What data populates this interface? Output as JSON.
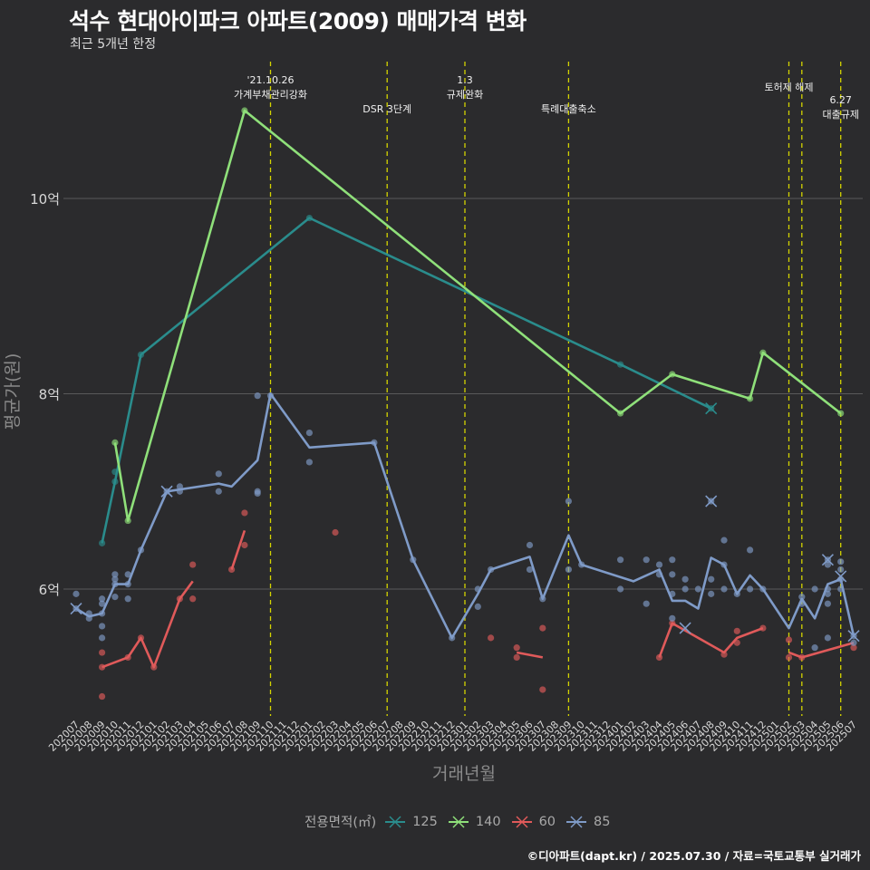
{
  "title": "석수 현대아이파크 아파트(2009) 매매가격 변화",
  "subtitle": "최근 5개년 한정",
  "caption": "©디아파트(dapt.kr) / 2025.07.30 / 자료=국토교통부 실거래가",
  "legend_title": "전용면적(㎡)",
  "colors": {
    "125": "#2a8c8c",
    "140": "#8fe07a",
    "60": "#e05a5a",
    "85": "#7f9bc8",
    "vline": "#d4d400",
    "grid": "#5a5a5a",
    "background": "#2b2b2d"
  },
  "chart_data": {
    "type": "line",
    "xlabel": "거래년월",
    "ylabel": "평균가(원)",
    "ylim": [
      4.7,
      11.8
    ],
    "yticks": [
      {
        "value": 6,
        "label": "6억"
      },
      {
        "value": 8,
        "label": "8억"
      },
      {
        "value": 10,
        "label": "10억"
      }
    ],
    "x_start": "2020-07",
    "x_end": "2025-07",
    "x_labels": [
      "202007",
      "202008",
      "202009",
      "202010",
      "202011",
      "202012",
      "202101",
      "202102",
      "202103",
      "202104",
      "202105",
      "202106",
      "202107",
      "202108",
      "202109",
      "202110",
      "202111",
      "202112",
      "202201",
      "202202",
      "202203",
      "202204",
      "202205",
      "202206",
      "202207",
      "202208",
      "202209",
      "202210",
      "202211",
      "202212",
      "202301",
      "202302",
      "202303",
      "202304",
      "202305",
      "202306",
      "202307",
      "202308",
      "202309",
      "202310",
      "202311",
      "202312",
      "202401",
      "202402",
      "202403",
      "202404",
      "202405",
      "202406",
      "202407",
      "202408",
      "202409",
      "202410",
      "202411",
      "202412",
      "202501",
      "202502",
      "202503",
      "202504",
      "202505",
      "202506",
      "202507"
    ],
    "events": [
      {
        "date": "2021-10",
        "label": "'21.10.26\n가계부채관리강화",
        "row": 0
      },
      {
        "date": "2022-07",
        "label": "DSR 3단계",
        "row": 2
      },
      {
        "date": "2023-01",
        "label": "1.3\n규제완화",
        "row": 0
      },
      {
        "date": "2023-09",
        "label": "특례대출축소",
        "row": 2
      },
      {
        "date": "2025-02",
        "label": "토허제 해제",
        "row": 1
      },
      {
        "date": "2025-03",
        "label": "",
        "row": 1
      },
      {
        "date": "2025-06",
        "label": "6.27\n대출규제",
        "row": 3
      }
    ],
    "series": [
      {
        "name": "125",
        "line": [
          [
            "2020-09",
            6.47
          ],
          [
            "2020-10",
            7.1
          ],
          [
            "2020-12",
            8.4
          ],
          [
            "2022-01",
            9.8
          ],
          [
            "2024-01",
            8.3
          ],
          [
            "2024-08",
            7.85
          ]
        ],
        "points": [
          [
            "2020-09",
            6.47
          ],
          [
            "2020-10",
            7.1
          ],
          [
            "2020-10",
            7.2
          ],
          [
            "2020-12",
            8.4
          ],
          [
            "2022-01",
            9.8
          ],
          [
            "2024-01",
            8.3
          ],
          [
            "2024-08",
            7.85
          ]
        ],
        "crosses": [
          [
            "2024-08",
            7.85
          ]
        ]
      },
      {
        "name": "140",
        "line": [
          [
            "2020-10",
            7.5
          ],
          [
            "2020-11",
            6.7
          ],
          [
            "2021-08",
            10.9
          ],
          [
            "2024-01",
            7.8
          ],
          [
            "2024-05",
            8.2
          ],
          [
            "2024-11",
            7.95
          ],
          [
            "2024-12",
            8.42
          ],
          [
            "2025-06",
            7.8
          ]
        ],
        "points": [
          [
            "2020-10",
            7.5
          ],
          [
            "2020-11",
            6.7
          ],
          [
            "2021-08",
            10.9
          ],
          [
            "2024-01",
            7.8
          ],
          [
            "2024-05",
            8.2
          ],
          [
            "2024-11",
            7.95
          ],
          [
            "2024-12",
            8.42
          ],
          [
            "2025-06",
            7.8
          ]
        ],
        "crosses": []
      },
      {
        "name": "60",
        "segments": [
          [
            [
              "2020-09",
              5.2
            ],
            [
              "2020-11",
              5.3
            ],
            [
              "2020-12",
              5.5
            ],
            [
              "2021-01",
              5.2
            ],
            [
              "2021-03",
              5.9
            ],
            [
              "2021-04",
              6.08
            ]
          ],
          [
            [
              "2021-07",
              6.2
            ],
            [
              "2021-08",
              6.6
            ]
          ],
          [
            [
              "2023-05",
              5.35
            ],
            [
              "2023-07",
              5.3
            ]
          ],
          [
            [
              "2024-04",
              5.3
            ],
            [
              "2024-05",
              5.65
            ],
            [
              "2024-09",
              5.35
            ],
            [
              "2024-10",
              5.5
            ],
            [
              "2024-12",
              5.6
            ]
          ],
          [
            [
              "2025-02",
              5.35
            ],
            [
              "2025-03",
              5.3
            ],
            [
              "2025-07",
              5.45
            ]
          ]
        ],
        "points": [
          [
            "2020-09",
            4.9
          ],
          [
            "2020-09",
            5.2
          ],
          [
            "2020-09",
            5.35
          ],
          [
            "2020-11",
            5.3
          ],
          [
            "2020-12",
            5.5
          ],
          [
            "2021-01",
            5.2
          ],
          [
            "2021-03",
            5.9
          ],
          [
            "2021-04",
            5.9
          ],
          [
            "2021-04",
            6.25
          ],
          [
            "2021-07",
            6.2
          ],
          [
            "2021-08",
            6.45
          ],
          [
            "2021-08",
            6.78
          ],
          [
            "2022-03",
            6.58
          ],
          [
            "2023-03",
            5.5
          ],
          [
            "2023-05",
            5.3
          ],
          [
            "2023-05",
            5.4
          ],
          [
            "2023-07",
            5.6
          ],
          [
            "2023-07",
            4.97
          ],
          [
            "2024-04",
            5.3
          ],
          [
            "2024-05",
            5.65
          ],
          [
            "2024-09",
            5.33
          ],
          [
            "2024-10",
            5.45
          ],
          [
            "2024-10",
            5.57
          ],
          [
            "2024-12",
            5.6
          ],
          [
            "2025-02",
            5.3
          ],
          [
            "2025-02",
            5.48
          ],
          [
            "2025-03",
            5.3
          ],
          [
            "2025-07",
            5.4
          ]
        ],
        "crosses": []
      },
      {
        "name": "85",
        "line": [
          [
            "2020-07",
            5.8
          ],
          [
            "2020-08",
            5.72
          ],
          [
            "2020-09",
            5.75
          ],
          [
            "2020-10",
            6.05
          ],
          [
            "2020-11",
            6.05
          ],
          [
            "2020-12",
            6.4
          ],
          [
            "2021-02",
            7.0
          ],
          [
            "2021-06",
            7.08
          ],
          [
            "2021-07",
            7.05
          ],
          [
            "2021-09",
            7.32
          ],
          [
            "2021-10",
            8.0
          ],
          [
            "2022-01",
            7.45
          ],
          [
            "2022-06",
            7.5
          ],
          [
            "2022-09",
            6.3
          ],
          [
            "2022-12",
            5.5
          ],
          [
            "2023-02",
            5.95
          ],
          [
            "2023-03",
            6.2
          ],
          [
            "2023-06",
            6.33
          ],
          [
            "2023-07",
            5.9
          ],
          [
            "2023-09",
            6.55
          ],
          [
            "2023-10",
            6.25
          ],
          [
            "2024-02",
            6.08
          ],
          [
            "2024-04",
            6.2
          ],
          [
            "2024-05",
            5.88
          ],
          [
            "2024-06",
            5.88
          ],
          [
            "2024-07",
            5.8
          ],
          [
            "2024-08",
            6.32
          ],
          [
            "2024-09",
            6.25
          ],
          [
            "2024-10",
            5.95
          ],
          [
            "2024-11",
            6.14
          ],
          [
            "2024-12",
            6.0
          ],
          [
            "2025-02",
            5.6
          ],
          [
            "2025-03",
            5.9
          ],
          [
            "2025-04",
            5.7
          ],
          [
            "2025-05",
            6.05
          ],
          [
            "2025-06",
            6.1
          ],
          [
            "2025-07",
            5.52
          ]
        ],
        "points": [
          [
            "2020-07",
            5.95
          ],
          [
            "2020-07",
            5.8
          ],
          [
            "2020-08",
            5.7
          ],
          [
            "2020-08",
            5.75
          ],
          [
            "2020-09",
            5.5
          ],
          [
            "2020-09",
            5.62
          ],
          [
            "2020-09",
            5.75
          ],
          [
            "2020-09",
            5.85
          ],
          [
            "2020-09",
            5.9
          ],
          [
            "2020-10",
            5.92
          ],
          [
            "2020-10",
            6.05
          ],
          [
            "2020-10",
            6.1
          ],
          [
            "2020-10",
            6.15
          ],
          [
            "2020-11",
            5.9
          ],
          [
            "2020-11",
            6.05
          ],
          [
            "2020-11",
            6.15
          ],
          [
            "2020-12",
            6.4
          ],
          [
            "2021-02",
            7.0
          ],
          [
            "2021-03",
            7.0
          ],
          [
            "2021-03",
            7.05
          ],
          [
            "2021-06",
            7.0
          ],
          [
            "2021-06",
            7.18
          ],
          [
            "2021-09",
            6.98
          ],
          [
            "2021-09",
            7.0
          ],
          [
            "2021-09",
            7.98
          ],
          [
            "2021-10",
            7.98
          ],
          [
            "2022-01",
            7.3
          ],
          [
            "2022-01",
            7.6
          ],
          [
            "2022-06",
            7.5
          ],
          [
            "2022-09",
            6.3
          ],
          [
            "2022-12",
            5.5
          ],
          [
            "2023-02",
            5.82
          ],
          [
            "2023-02",
            6.0
          ],
          [
            "2023-03",
            6.2
          ],
          [
            "2023-06",
            6.2
          ],
          [
            "2023-06",
            6.45
          ],
          [
            "2023-07",
            5.9
          ],
          [
            "2023-09",
            6.2
          ],
          [
            "2023-09",
            6.9
          ],
          [
            "2023-10",
            6.25
          ],
          [
            "2024-01",
            6.0
          ],
          [
            "2024-01",
            6.3
          ],
          [
            "2024-03",
            5.85
          ],
          [
            "2024-03",
            6.3
          ],
          [
            "2024-04",
            6.15
          ],
          [
            "2024-04",
            6.25
          ],
          [
            "2024-05",
            5.7
          ],
          [
            "2024-05",
            5.95
          ],
          [
            "2024-05",
            6.15
          ],
          [
            "2024-05",
            6.3
          ],
          [
            "2024-06",
            6.0
          ],
          [
            "2024-06",
            6.1
          ],
          [
            "2024-07",
            6.0
          ],
          [
            "2024-08",
            5.95
          ],
          [
            "2024-08",
            6.1
          ],
          [
            "2024-08",
            6.9
          ],
          [
            "2024-09",
            6.0
          ],
          [
            "2024-09",
            6.25
          ],
          [
            "2024-09",
            6.5
          ],
          [
            "2024-10",
            5.95
          ],
          [
            "2024-11",
            6.0
          ],
          [
            "2024-11",
            6.4
          ],
          [
            "2024-12",
            6.0
          ],
          [
            "2025-03",
            5.85
          ],
          [
            "2025-03",
            5.92
          ],
          [
            "2025-04",
            5.4
          ],
          [
            "2025-04",
            6.0
          ],
          [
            "2025-05",
            5.5
          ],
          [
            "2025-05",
            5.85
          ],
          [
            "2025-05",
            5.95
          ],
          [
            "2025-05",
            6.0
          ],
          [
            "2025-05",
            6.25
          ],
          [
            "2025-05",
            6.3
          ],
          [
            "2025-06",
            6.0
          ],
          [
            "2025-06",
            6.1
          ],
          [
            "2025-06",
            6.2
          ],
          [
            "2025-06",
            6.28
          ],
          [
            "2025-07",
            5.45
          ],
          [
            "2025-07",
            5.52
          ]
        ],
        "crosses": [
          [
            "2020-07",
            5.8
          ],
          [
            "2021-02",
            7.0
          ],
          [
            "2024-06",
            5.6
          ],
          [
            "2024-08",
            6.9
          ],
          [
            "2025-05",
            6.3
          ],
          [
            "2025-06",
            6.13
          ],
          [
            "2025-07",
            5.52
          ]
        ]
      }
    ]
  }
}
